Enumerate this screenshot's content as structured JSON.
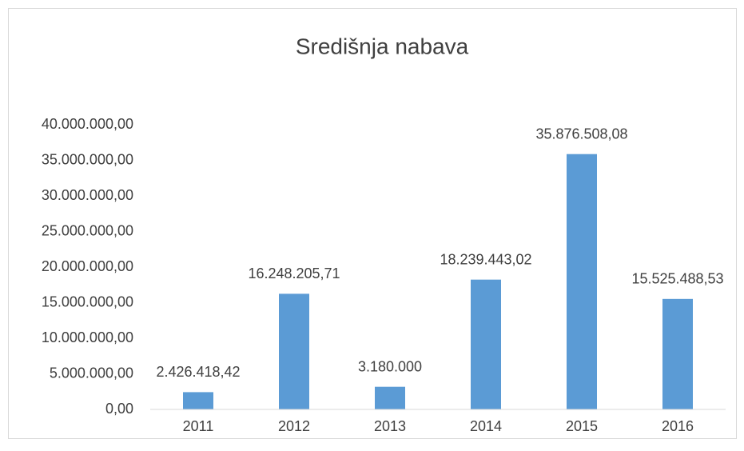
{
  "chart_data": {
    "type": "bar",
    "title": "Središnja nabava",
    "categories": [
      "2011",
      "2012",
      "2013",
      "2014",
      "2015",
      "2016"
    ],
    "values": [
      2426418.42,
      16248205.71,
      3180000,
      18239443.02,
      35876508.08,
      15525488.53
    ],
    "value_labels": [
      "2.426.418,42",
      "16.248.205,71",
      "3.180.000",
      "18.239.443,02",
      "35.876.508,08",
      "15.525.488,53"
    ],
    "color": "#5b9bd5",
    "ylim": [
      0,
      40000000
    ],
    "yticks": [
      {
        "value": 0,
        "label": "0,00"
      },
      {
        "value": 5000000,
        "label": "5.000.000,00"
      },
      {
        "value": 10000000,
        "label": "10.000.000,00"
      },
      {
        "value": 15000000,
        "label": "15.000.000,00"
      },
      {
        "value": 20000000,
        "label": "20.000.000,00"
      },
      {
        "value": 25000000,
        "label": "25.000.000,00"
      },
      {
        "value": 30000000,
        "label": "30.000.000,00"
      },
      {
        "value": 35000000,
        "label": "35.000.000,00"
      },
      {
        "value": 40000000,
        "label": "40.000.000,00"
      }
    ],
    "grid": false
  }
}
